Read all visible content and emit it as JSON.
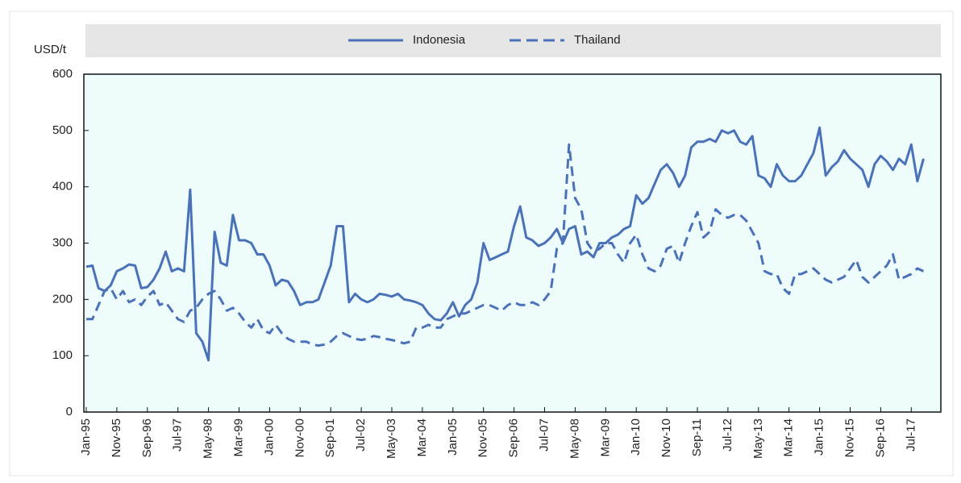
{
  "chart_data": {
    "type": "line",
    "y_label": "USD/t",
    "categories": [
      "Jan-95",
      null,
      null,
      null,
      null,
      "Nov-95",
      null,
      null,
      null,
      null,
      "Sep-96",
      null,
      null,
      null,
      null,
      "Jul-97",
      null,
      null,
      null,
      null,
      "May-98",
      null,
      null,
      null,
      null,
      "Mar-99",
      null,
      null,
      null,
      null,
      "Jan-00",
      null,
      null,
      null,
      null,
      "Nov-00",
      null,
      null,
      null,
      null,
      "Sep-01",
      null,
      null,
      null,
      null,
      "Jul-02",
      null,
      null,
      null,
      null,
      "May-03",
      null,
      null,
      null,
      null,
      "Mar-04",
      null,
      null,
      null,
      null,
      "Jan-05",
      null,
      null,
      null,
      null,
      "Nov-05",
      null,
      null,
      null,
      null,
      "Sep-06",
      null,
      null,
      null,
      null,
      "Jul-07",
      null,
      null,
      null,
      null,
      "May-08",
      null,
      null,
      null,
      null,
      "Mar-09",
      null,
      null,
      null,
      null,
      "Jan-10",
      null,
      null,
      null,
      null,
      "Nov-10",
      null,
      null,
      null,
      null,
      "Sep-11",
      null,
      null,
      null,
      null,
      "Jul-12",
      null,
      null,
      null,
      null,
      "May-13",
      null,
      null,
      null,
      null,
      "Mar-14",
      null,
      null,
      null,
      null,
      "Jan-15",
      null,
      null,
      null,
      null,
      "Nov-15",
      null,
      null,
      null,
      null,
      "Sep-16",
      null,
      null,
      null,
      null,
      "Jul-17",
      null,
      null
    ],
    "series": [
      {
        "name": "Indonesia",
        "color": "#4a72b8",
        "dash": false,
        "values": [
          258,
          260,
          220,
          215,
          225,
          250,
          255,
          262,
          260,
          220,
          222,
          235,
          255,
          285,
          250,
          255,
          250,
          395,
          140,
          125,
          92,
          320,
          265,
          260,
          350,
          305,
          305,
          300,
          280,
          280,
          260,
          225,
          235,
          232,
          215,
          190,
          195,
          195,
          200,
          230,
          260,
          330,
          330,
          195,
          210,
          200,
          195,
          200,
          210,
          208,
          205,
          210,
          200,
          198,
          195,
          190,
          175,
          165,
          163,
          175,
          195,
          170,
          190,
          200,
          230,
          300,
          270,
          275,
          280,
          285,
          330,
          365,
          310,
          305,
          295,
          300,
          310,
          325,
          300,
          325,
          330,
          280,
          285,
          275,
          300,
          300,
          310,
          315,
          325,
          330,
          385,
          370,
          380,
          405,
          430,
          440,
          425,
          400,
          420,
          470,
          480,
          480,
          485,
          480,
          500,
          495,
          500,
          480,
          475,
          490,
          420,
          415,
          400,
          440,
          420,
          410,
          410,
          420,
          440,
          460,
          505,
          420,
          435,
          445,
          465,
          450,
          440,
          430,
          400,
          440,
          455,
          445,
          430,
          450,
          440,
          475,
          410,
          450
        ]
      },
      {
        "name": "Thailand",
        "color": "#4a72b8",
        "dash": true,
        "values": [
          165,
          165,
          190,
          215,
          220,
          200,
          215,
          195,
          200,
          190,
          205,
          215,
          190,
          195,
          180,
          165,
          160,
          180,
          185,
          200,
          210,
          215,
          200,
          180,
          185,
          175,
          160,
          150,
          165,
          145,
          140,
          155,
          140,
          130,
          125,
          125,
          125,
          120,
          118,
          120,
          125,
          135,
          140,
          135,
          130,
          128,
          130,
          135,
          133,
          130,
          128,
          125,
          122,
          125,
          150,
          150,
          155,
          150,
          150,
          165,
          170,
          175,
          175,
          180,
          185,
          190,
          190,
          185,
          180,
          190,
          195,
          190,
          190,
          195,
          190,
          200,
          215,
          290,
          300,
          475,
          380,
          360,
          300,
          285,
          290,
          300,
          300,
          280,
          265,
          300,
          315,
          280,
          255,
          250,
          260,
          290,
          295,
          265,
          300,
          330,
          355,
          310,
          320,
          360,
          350,
          345,
          350,
          350,
          340,
          320,
          300,
          250,
          245,
          245,
          220,
          210,
          245,
          245,
          250,
          255,
          245,
          235,
          230,
          235,
          240,
          255,
          270,
          240,
          230,
          240,
          250,
          260,
          280,
          235,
          240,
          245,
          255,
          250
        ]
      }
    ],
    "ylim": [
      0,
      600
    ],
    "yticks": [
      0,
      100,
      200,
      300,
      400,
      500,
      600
    ]
  }
}
